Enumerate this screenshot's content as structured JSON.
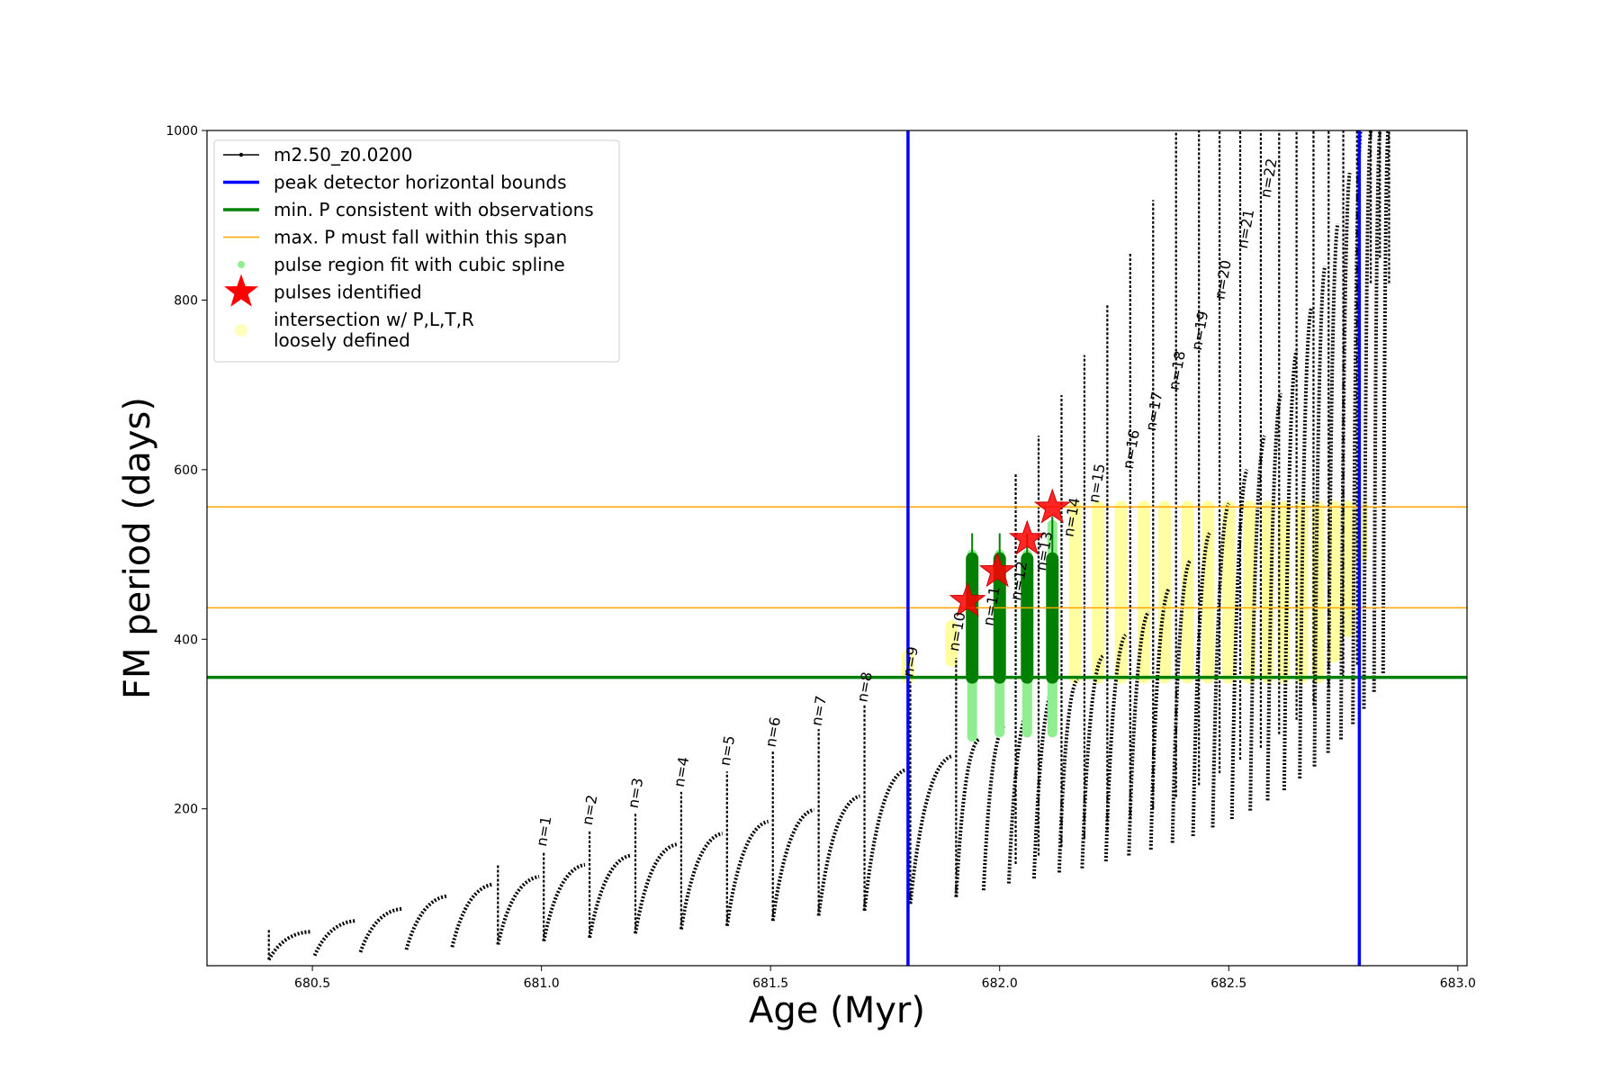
{
  "chart_data": {
    "type": "line",
    "title": "",
    "xlabel": "Age (Myr)",
    "ylabel": "FM period (days)",
    "xlim": [
      680.27,
      683.02
    ],
    "ylim": [
      15,
      1000
    ],
    "x_ticks": [
      680.5,
      681.0,
      681.5,
      682.0,
      682.5,
      683.0
    ],
    "x_tick_labels": [
      "680.5",
      "681.0",
      "681.5",
      "682.0",
      "682.5",
      "683.0"
    ],
    "y_ticks": [
      200,
      400,
      600,
      800,
      1000
    ],
    "y_tick_labels": [
      "200",
      "400",
      "600",
      "800",
      "1000"
    ],
    "grid": false,
    "legend_position": "top-left",
    "legend": [
      {
        "label": "m2.50_z0.0200",
        "kind": "line-marker",
        "color": "#000000"
      },
      {
        "label": "peak detector horizontal bounds",
        "kind": "line",
        "color": "#0000ff"
      },
      {
        "label": "min. P consistent with observations",
        "kind": "line",
        "color": "#008000"
      },
      {
        "label": "max. P must fall within this span",
        "kind": "line",
        "color": "#ffa500"
      },
      {
        "label": "pulse region fit with cubic spline",
        "kind": "dot",
        "color": "#90ee90"
      },
      {
        "label": "pulses identified",
        "kind": "star",
        "color": "#ff0000"
      },
      {
        "label": "intersection w/ P,L,T,R\nloosely defined",
        "kind": "dot-faint",
        "color": "#ffffa0"
      }
    ],
    "series": [
      {
        "name": "m2.50_z0.0200",
        "color": "#000000",
        "cycle_period_myr": 0.1,
        "pulses": [
          {
            "start_age": 680.405,
            "start_P": 22,
            "peak_age": 680.495,
            "peak_P": 55
          },
          {
            "start_age": 680.505,
            "start_P": 27,
            "peak_age": 680.595,
            "peak_P": 68
          },
          {
            "start_age": 680.605,
            "start_P": 31,
            "peak_age": 680.695,
            "peak_P": 82
          },
          {
            "start_age": 680.705,
            "start_P": 34,
            "peak_age": 680.795,
            "peak_P": 97
          },
          {
            "start_age": 680.805,
            "start_P": 37,
            "peak_age": 680.895,
            "peak_P": 111
          },
          {
            "start_age": 680.905,
            "start_P": 40,
            "peak_age": 680.995,
            "peak_P": 120
          },
          {
            "start_age": 681.005,
            "start_P": 44,
            "peak_age": 681.095,
            "peak_P": 134
          },
          {
            "start_age": 681.105,
            "start_P": 48,
            "peak_age": 681.195,
            "peak_P": 145
          },
          {
            "start_age": 681.205,
            "start_P": 53,
            "peak_age": 681.295,
            "peak_P": 158
          },
          {
            "start_age": 681.305,
            "start_P": 58,
            "peak_age": 681.395,
            "peak_P": 171
          },
          {
            "start_age": 681.405,
            "start_P": 62,
            "peak_age": 681.495,
            "peak_P": 185
          },
          {
            "start_age": 681.505,
            "start_P": 68,
            "peak_age": 681.595,
            "peak_P": 199
          },
          {
            "start_age": 681.605,
            "start_P": 74,
            "peak_age": 681.695,
            "peak_P": 215
          },
          {
            "start_age": 681.705,
            "start_P": 80,
            "peak_age": 681.795,
            "peak_P": 246
          },
          {
            "start_age": 681.805,
            "start_P": 88,
            "peak_age": 681.895,
            "peak_P": 262
          },
          {
            "start_age": 681.905,
            "start_P": 96,
            "peak_age": 681.955,
            "peak_P": 282
          },
          {
            "start_age": 681.965,
            "start_P": 104,
            "peak_age": 682.01,
            "peak_P": 298
          },
          {
            "start_age": 682.02,
            "start_P": 112,
            "peak_age": 682.065,
            "peak_P": 318
          },
          {
            "start_age": 682.075,
            "start_P": 118,
            "peak_age": 682.12,
            "peak_P": 345
          },
          {
            "start_age": 682.13,
            "start_P": 125,
            "peak_age": 682.17,
            "peak_P": 353
          },
          {
            "start_age": 682.18,
            "start_P": 130,
            "peak_age": 682.225,
            "peak_P": 380
          },
          {
            "start_age": 682.232,
            "start_P": 138,
            "peak_age": 682.275,
            "peak_P": 405
          },
          {
            "start_age": 682.282,
            "start_P": 145,
            "peak_age": 682.325,
            "peak_P": 432
          },
          {
            "start_age": 682.33,
            "start_P": 152,
            "peak_age": 682.37,
            "peak_P": 460
          },
          {
            "start_age": 682.377,
            "start_P": 160,
            "peak_age": 682.415,
            "peak_P": 492
          },
          {
            "start_age": 682.422,
            "start_P": 168,
            "peak_age": 682.458,
            "peak_P": 525
          },
          {
            "start_age": 682.465,
            "start_P": 178,
            "peak_age": 682.5,
            "peak_P": 560
          },
          {
            "start_age": 682.507,
            "start_P": 188,
            "peak_age": 682.54,
            "peak_P": 600
          },
          {
            "start_age": 682.547,
            "start_P": 198,
            "peak_age": 682.578,
            "peak_P": 640
          },
          {
            "start_age": 682.585,
            "start_P": 210,
            "peak_age": 682.614,
            "peak_P": 690
          },
          {
            "start_age": 682.621,
            "start_P": 222,
            "peak_age": 682.648,
            "peak_P": 740
          },
          {
            "start_age": 682.655,
            "start_P": 236,
            "peak_age": 682.68,
            "peak_P": 790
          },
          {
            "start_age": 682.687,
            "start_P": 250,
            "peak_age": 682.71,
            "peak_P": 840
          },
          {
            "start_age": 682.717,
            "start_P": 266,
            "peak_age": 682.738,
            "peak_P": 890
          },
          {
            "start_age": 682.745,
            "start_P": 282,
            "peak_age": 682.764,
            "peak_P": 950
          },
          {
            "start_age": 682.771,
            "start_P": 300,
            "peak_age": 682.788,
            "peak_P": 1000
          },
          {
            "start_age": 682.795,
            "start_P": 318,
            "peak_age": 682.81,
            "peak_P": 1000
          },
          {
            "start_age": 682.817,
            "start_P": 338,
            "peak_age": 682.83,
            "peak_P": 1000
          },
          {
            "start_age": 682.837,
            "start_P": 360,
            "peak_age": 682.848,
            "peak_P": 1000
          }
        ],
        "flash_spikes": [
          {
            "age": 680.405,
            "P_top": 58,
            "P_bottom": 22
          },
          {
            "age": 680.905,
            "P_top": 135,
            "P_bottom": 40
          },
          {
            "age": 681.005,
            "P_top": 150,
            "P_bottom": 44
          },
          {
            "age": 681.105,
            "P_top": 174,
            "P_bottom": 48
          },
          {
            "age": 681.205,
            "P_top": 196,
            "P_bottom": 53
          },
          {
            "age": 681.305,
            "P_top": 220,
            "P_bottom": 58
          },
          {
            "age": 681.405,
            "P_top": 244,
            "P_bottom": 62
          },
          {
            "age": 681.505,
            "P_top": 268,
            "P_bottom": 68
          },
          {
            "age": 681.605,
            "P_top": 294,
            "P_bottom": 74
          },
          {
            "age": 681.705,
            "P_top": 322,
            "P_bottom": 80
          },
          {
            "age": 681.805,
            "P_top": 350,
            "P_bottom": 88
          },
          {
            "age": 681.905,
            "P_top": 378,
            "P_bottom": 96
          },
          {
            "age": 682.035,
            "P_top": 595,
            "P_bottom": 135
          },
          {
            "age": 682.085,
            "P_top": 640,
            "P_bottom": 145
          },
          {
            "age": 682.135,
            "P_top": 688,
            "P_bottom": 155
          },
          {
            "age": 682.185,
            "P_top": 735,
            "P_bottom": 165
          },
          {
            "age": 682.235,
            "P_top": 795,
            "P_bottom": 175
          },
          {
            "age": 682.285,
            "P_top": 855,
            "P_bottom": 188
          },
          {
            "age": 682.335,
            "P_top": 918,
            "P_bottom": 200
          },
          {
            "age": 682.385,
            "P_top": 1000,
            "P_bottom": 214
          },
          {
            "age": 682.435,
            "P_top": 1000,
            "P_bottom": 228
          },
          {
            "age": 682.48,
            "P_top": 1000,
            "P_bottom": 242
          },
          {
            "age": 682.525,
            "P_top": 1000,
            "P_bottom": 258
          },
          {
            "age": 682.57,
            "P_top": 1000,
            "P_bottom": 272
          },
          {
            "age": 682.61,
            "P_top": 1000,
            "P_bottom": 288
          },
          {
            "age": 682.648,
            "P_top": 1000,
            "P_bottom": 305
          },
          {
            "age": 682.685,
            "P_top": 1000,
            "P_bottom": 322
          },
          {
            "age": 682.718,
            "P_top": 1000,
            "P_bottom": 338
          },
          {
            "age": 682.75,
            "P_top": 1000,
            "P_bottom": 355
          },
          {
            "age": 682.78,
            "P_top": 1000,
            "P_bottom": 370
          },
          {
            "age": 682.81,
            "P_top": 1000,
            "P_bottom": 820
          },
          {
            "age": 682.83,
            "P_top": 1000,
            "P_bottom": 850
          },
          {
            "age": 682.85,
            "P_top": 1000,
            "P_bottom": 820
          }
        ]
      }
    ],
    "vertical_lines": [
      {
        "name": "peak detector horizontal bounds",
        "x": 681.8,
        "color": "#0000ff"
      },
      {
        "name": "peak detector horizontal bounds",
        "x": 682.785,
        "color": "#0000ff"
      }
    ],
    "horizontal_lines": [
      {
        "name": "min. P consistent with observations",
        "y": 355,
        "color": "#008000",
        "width": 3.5
      },
      {
        "name": "max. P must fall within this span",
        "y": 437,
        "color": "#ffa500",
        "width": 1.5
      },
      {
        "name": "max. P must fall within this span",
        "y": 556,
        "color": "#ffa500",
        "width": 1.5
      }
    ],
    "spline_regions": [
      {
        "age": 681.94,
        "P_min": 285,
        "P_max": 500
      },
      {
        "age": 682.0,
        "P_min": 290,
        "P_max": 500
      },
      {
        "age": 682.06,
        "P_min": 290,
        "P_max": 500
      },
      {
        "age": 682.115,
        "P_min": 290,
        "P_max": 535
      }
    ],
    "pulse_fit_segments": [
      {
        "age": 681.94,
        "P_min": 355,
        "P_max": 495,
        "cap": 525
      },
      {
        "age": 682.0,
        "P_min": 355,
        "P_max": 495,
        "cap": 525
      },
      {
        "age": 682.06,
        "P_min": 355,
        "P_max": 495,
        "cap": 525
      },
      {
        "age": 682.115,
        "P_min": 355,
        "P_max": 495,
        "cap": 545
      }
    ],
    "pulses_identified": [
      {
        "age": 681.93,
        "P": 445
      },
      {
        "age": 681.995,
        "P": 480
      },
      {
        "age": 682.06,
        "P": 518
      },
      {
        "age": 682.115,
        "P": 555
      }
    ],
    "intersection_loose": {
      "P_min": 355,
      "P_max": 556,
      "columns": [
        {
          "age": 681.8,
          "P_min": 355,
          "P_max": 380
        },
        {
          "age": 681.895,
          "P_min": 375,
          "P_max": 415
        },
        {
          "age": 682.165,
          "P_min": 355,
          "P_max": 556
        },
        {
          "age": 682.215,
          "P_min": 355,
          "P_max": 556
        },
        {
          "age": 682.265,
          "P_min": 355,
          "P_max": 556
        },
        {
          "age": 682.315,
          "P_min": 355,
          "P_max": 556
        },
        {
          "age": 682.36,
          "P_min": 355,
          "P_max": 556
        },
        {
          "age": 682.41,
          "P_min": 355,
          "P_max": 556
        },
        {
          "age": 682.455,
          "P_min": 355,
          "P_max": 556
        },
        {
          "age": 682.5,
          "P_min": 355,
          "P_max": 556
        },
        {
          "age": 682.545,
          "P_min": 355,
          "P_max": 556
        },
        {
          "age": 682.585,
          "P_min": 355,
          "P_max": 556
        },
        {
          "age": 682.62,
          "P_min": 355,
          "P_max": 556
        },
        {
          "age": 682.66,
          "P_min": 355,
          "P_max": 556
        },
        {
          "age": 682.695,
          "P_min": 355,
          "P_max": 556
        },
        {
          "age": 682.73,
          "P_min": 380,
          "P_max": 556
        },
        {
          "age": 682.76,
          "P_min": 410,
          "P_max": 556
        },
        {
          "age": 682.79,
          "P_min": 500,
          "P_max": 556
        }
      ]
    },
    "annotations": [
      {
        "text": "n=1",
        "age": 681.01,
        "P": 155
      },
      {
        "text": "n=2",
        "age": 681.11,
        "P": 180
      },
      {
        "text": "n=3",
        "age": 681.21,
        "P": 200
      },
      {
        "text": "n=4",
        "age": 681.31,
        "P": 225
      },
      {
        "text": "n=5",
        "age": 681.41,
        "P": 250
      },
      {
        "text": "n=6",
        "age": 681.51,
        "P": 272
      },
      {
        "text": "n=7",
        "age": 681.61,
        "P": 297
      },
      {
        "text": "n=8",
        "age": 681.71,
        "P": 325
      },
      {
        "text": "n=9",
        "age": 681.81,
        "P": 355
      },
      {
        "text": "n=10",
        "age": 681.91,
        "P": 385
      },
      {
        "text": "n=11",
        "age": 681.985,
        "P": 415
      },
      {
        "text": "n=12",
        "age": 682.045,
        "P": 445
      },
      {
        "text": "n=13",
        "age": 682.1,
        "P": 480
      },
      {
        "text": "n=14",
        "age": 682.16,
        "P": 520
      },
      {
        "text": "n=15",
        "age": 682.215,
        "P": 560
      },
      {
        "text": "n=16",
        "age": 682.29,
        "P": 600
      },
      {
        "text": "n=17",
        "age": 682.34,
        "P": 645
      },
      {
        "text": "n=18",
        "age": 682.39,
        "P": 693
      },
      {
        "text": "n=19",
        "age": 682.44,
        "P": 740
      },
      {
        "text": "n=20",
        "age": 682.49,
        "P": 800
      },
      {
        "text": "n=21",
        "age": 682.54,
        "P": 860
      },
      {
        "text": "n=22",
        "age": 682.59,
        "P": 920
      }
    ]
  }
}
